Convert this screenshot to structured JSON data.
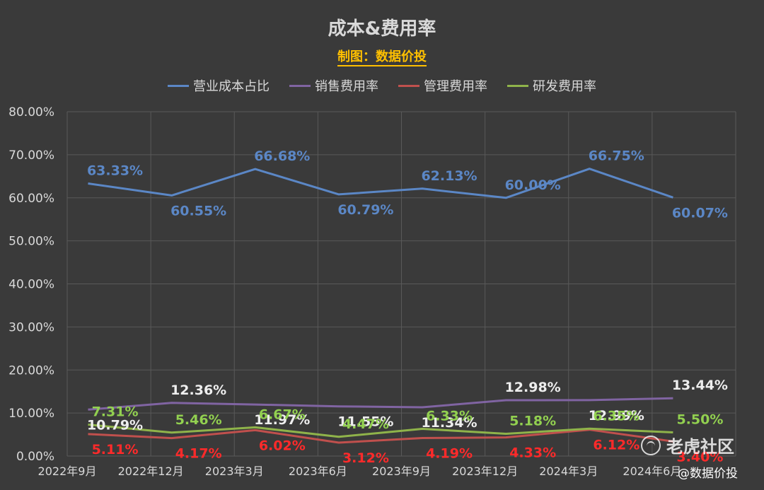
{
  "header": {
    "title": "成本&费用率",
    "subtitle": "制图：数据价投"
  },
  "watermark": {
    "brand": "老虎社区",
    "credit": "@数据价投"
  },
  "chart_data": {
    "type": "line",
    "title": "成本&费用率",
    "subtitle": "制图：数据价投",
    "xlabel": "",
    "ylabel": "",
    "ylim": [
      0,
      80
    ],
    "yticks": [
      "0.00%",
      "10.00%",
      "20.00%",
      "30.00%",
      "40.00%",
      "50.00%",
      "60.00%",
      "70.00%",
      "80.00%"
    ],
    "grid": true,
    "legend_position": "top",
    "x_tick_labels": [
      "2022年9月",
      "2022年12月",
      "2023年3月",
      "2023年6月",
      "2023年9月",
      "2023年12月",
      "2024年3月",
      "2024年6月"
    ],
    "x_tick_indices": [
      0,
      2,
      4,
      6,
      8,
      10,
      12,
      14
    ],
    "x": [
      "2022年9月",
      "2022年12月",
      "2023年3月",
      "2023年6月",
      "2023年9月",
      "2023年12月",
      "2024年3月",
      "2024年6月"
    ],
    "series": [
      {
        "name": "营业成本占比",
        "color": "#5b87c6",
        "label_color": "#5b87c6",
        "values": [
          63.33,
          60.55,
          66.68,
          60.79,
          62.13,
          60.0,
          66.75,
          60.07
        ],
        "labels": [
          "63.33%",
          "60.55%",
          "66.68%",
          "60.79%",
          "62.13%",
          "60.00%",
          "66.75%",
          "60.07%"
        ],
        "label_pos": [
          "above",
          "below",
          "above",
          "below",
          "above",
          "above",
          "above",
          "below"
        ]
      },
      {
        "name": "销售费用率",
        "color": "#8064a2",
        "label_color": "#eeeeee",
        "values": [
          10.79,
          12.36,
          11.97,
          11.55,
          11.34,
          12.98,
          12.99,
          13.44
        ],
        "labels": [
          "10.79%",
          "12.36%",
          "11.97%",
          "11.55%",
          "11.34%",
          "12.98%",
          "12.99%",
          "13.44%"
        ],
        "label_pos": [
          "below",
          "above",
          "below",
          "below",
          "below",
          "above",
          "below",
          "above"
        ]
      },
      {
        "name": "管理费用率",
        "color": "#c0504d",
        "label_color": "#ff2a2a",
        "values": [
          5.11,
          4.17,
          6.02,
          3.12,
          4.19,
          4.33,
          6.12,
          3.4
        ],
        "labels": [
          "5.11%",
          "4.17%",
          "6.02%",
          "3.12%",
          "4.19%",
          "4.33%",
          "6.12%",
          "3.40%"
        ],
        "label_pos": [
          "below",
          "below",
          "below",
          "below",
          "below",
          "below",
          "below",
          "below"
        ]
      },
      {
        "name": "研发费用率",
        "color": "#8fb34a",
        "label_color": "#92d050",
        "values": [
          7.31,
          5.46,
          6.67,
          4.47,
          6.33,
          5.18,
          6.35,
          5.5
        ],
        "labels": [
          "7.31%",
          "5.46%",
          "6.67%",
          "4.47%",
          "6.33%",
          "5.18%",
          "6.35%",
          "5.50%"
        ],
        "label_pos": [
          "above",
          "above",
          "above",
          "above",
          "above",
          "above",
          "above",
          "above"
        ]
      }
    ]
  }
}
